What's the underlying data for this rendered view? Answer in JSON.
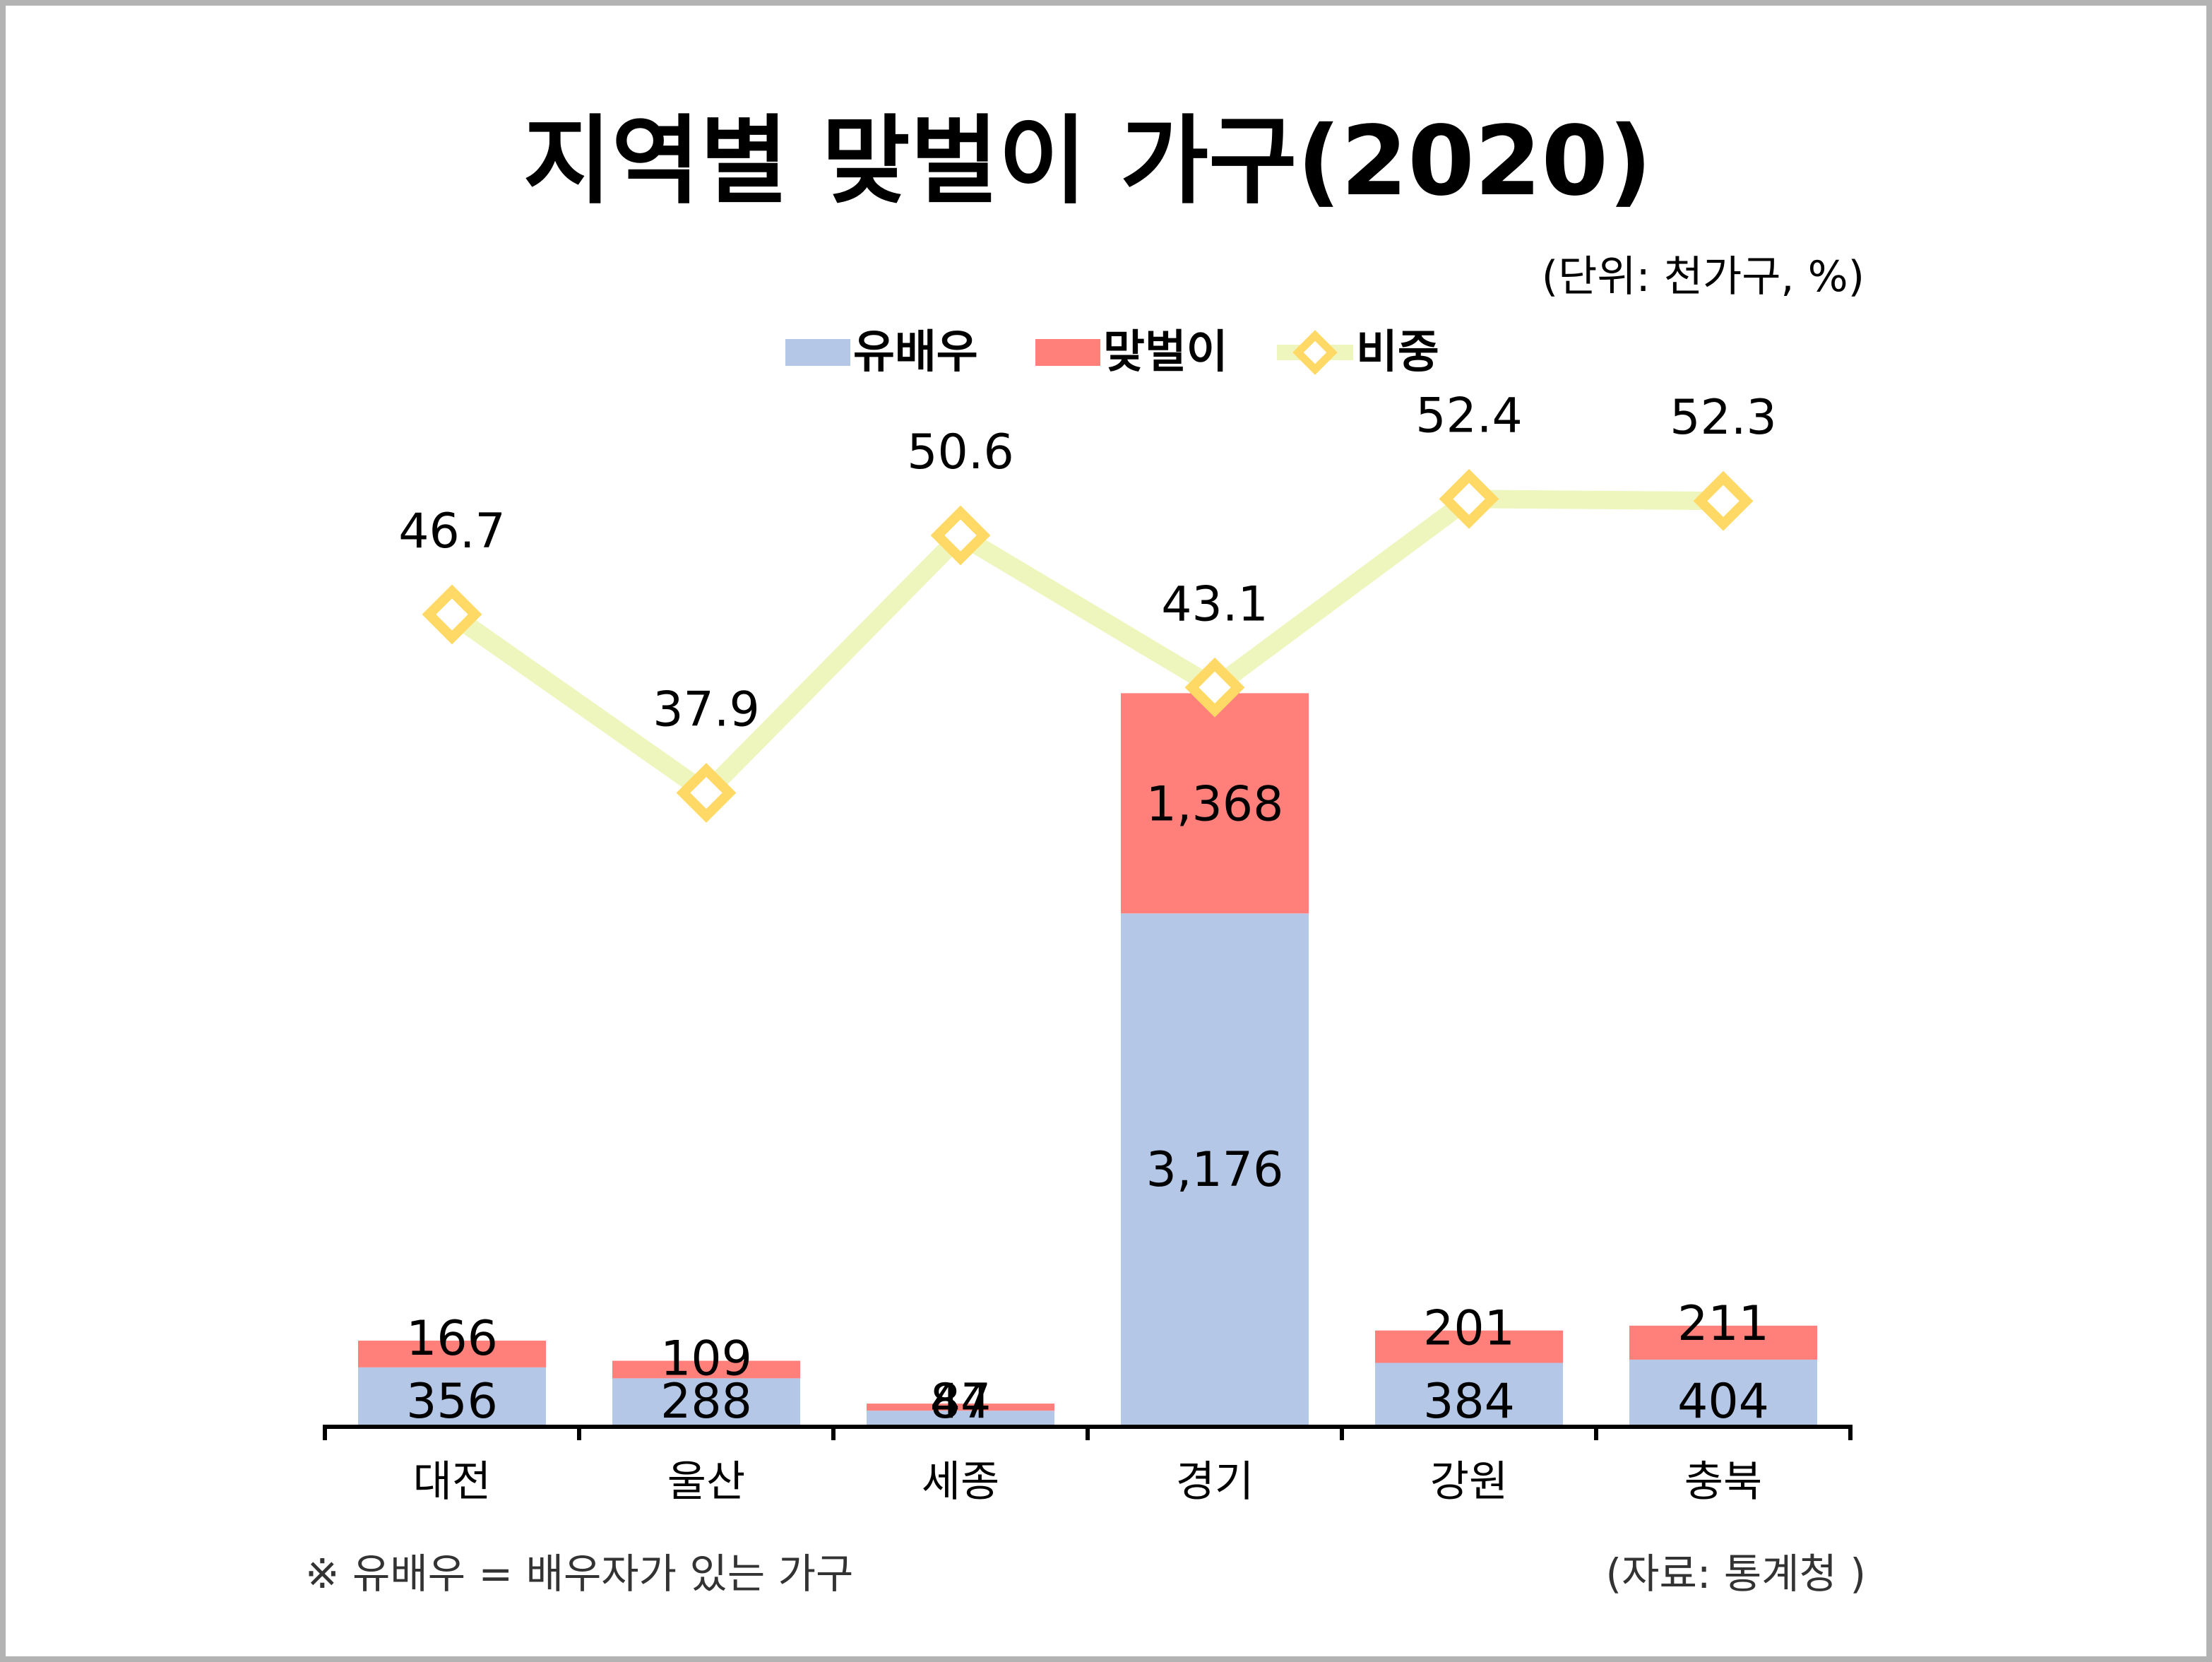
{
  "chart_data": {
    "type": "bar",
    "title": "지역별 맞벌이 가구(2020)",
    "unit_label": "(단위: 천가구, %)",
    "categories": [
      "대전",
      "울산",
      "세종",
      "경기",
      "강원",
      "충북"
    ],
    "series": [
      {
        "name": "유배우",
        "type": "bar",
        "stacked": true,
        "color": "#b4c7e7",
        "values": [
          356,
          288,
          87,
          3176,
          384,
          404
        ],
        "labels": [
          "356",
          "288",
          "87",
          "3,176",
          "384",
          "404"
        ]
      },
      {
        "name": "맞벌이",
        "type": "bar",
        "stacked": true,
        "color": "#ff7f7a",
        "values": [
          166,
          109,
          44,
          1368,
          201,
          211
        ],
        "labels": [
          "166",
          "109",
          "44",
          "1,368",
          "201",
          "211"
        ]
      },
      {
        "name": "비중",
        "type": "line",
        "color": "#eef6bd",
        "marker_color": "#ffd966",
        "values": [
          46.7,
          37.9,
          50.6,
          43.1,
          52.4,
          52.3
        ],
        "labels": [
          "46.7",
          "37.9",
          "50.6",
          "43.1",
          "52.4",
          "52.3"
        ]
      }
    ],
    "legend_position": "top-center",
    "grid": false,
    "footnote": "※ 유배우 = 배우자가 있는 가구",
    "source": "(자료: 통계청 )"
  }
}
